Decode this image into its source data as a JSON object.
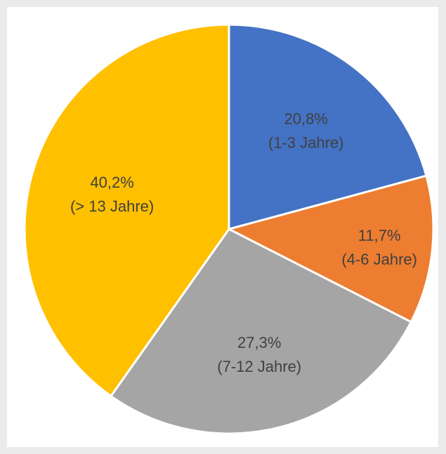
{
  "chart_data": {
    "type": "pie",
    "title": "",
    "legend": "none",
    "slices": [
      {
        "value": "20,8%",
        "label": "(1-3 Jahre)",
        "percent": 20.8,
        "color": "#4472c4"
      },
      {
        "value": "11,7%",
        "label": "(4-6 Jahre)",
        "percent": 11.7,
        "color": "#ed7d31"
      },
      {
        "value": "27,3%",
        "label": "(7-12 Jahre)",
        "percent": 27.3,
        "color": "#a5a5a5"
      },
      {
        "value": "40,2%",
        "label": "(> 13 Jahre)",
        "percent": 40.2,
        "color": "#ffc000"
      }
    ]
  }
}
